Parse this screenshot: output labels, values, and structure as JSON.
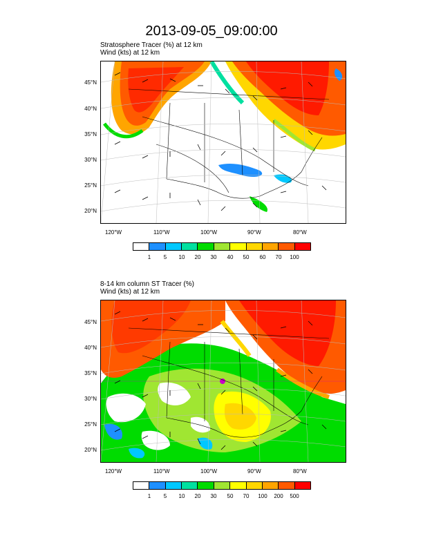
{
  "title": "2013-09-05_09:00:00",
  "panel1": {
    "line1": "Stratosphere Tracer   (%)     at   12 km",
    "line2": "Wind   (kts)     at   12 km",
    "lat_labels": [
      "45°N",
      "40°N",
      "35°N",
      "30°N",
      "25°N",
      "20°N"
    ],
    "lon_labels": [
      "120°W",
      "110°W",
      "100°W",
      "90°W",
      "80°W"
    ],
    "colorbar_labels": [
      "1",
      "5",
      "10",
      "20",
      "30",
      "40",
      "50",
      "60",
      "70",
      "100"
    ]
  },
  "panel2": {
    "line1": "8-14 km column ST Tracer   (%)",
    "line2": "Wind   (kts)     at   12 km",
    "lat_labels": [
      "45°N",
      "40°N",
      "35°N",
      "30°N",
      "25°N",
      "20°N"
    ],
    "lon_labels": [
      "120°W",
      "110°W",
      "100°W",
      "90°W",
      "80°W"
    ],
    "colorbar_labels": [
      "1",
      "5",
      "10",
      "20",
      "30",
      "50",
      "70",
      "100",
      "200",
      "500"
    ]
  },
  "colorbar_colors": [
    "#ffffff",
    "#1e90ff",
    "#00c8ff",
    "#00e0a0",
    "#00dc00",
    "#a0e632",
    "#ffff00",
    "#ffd700",
    "#ffa500",
    "#ff5a00",
    "#ff0000"
  ]
}
